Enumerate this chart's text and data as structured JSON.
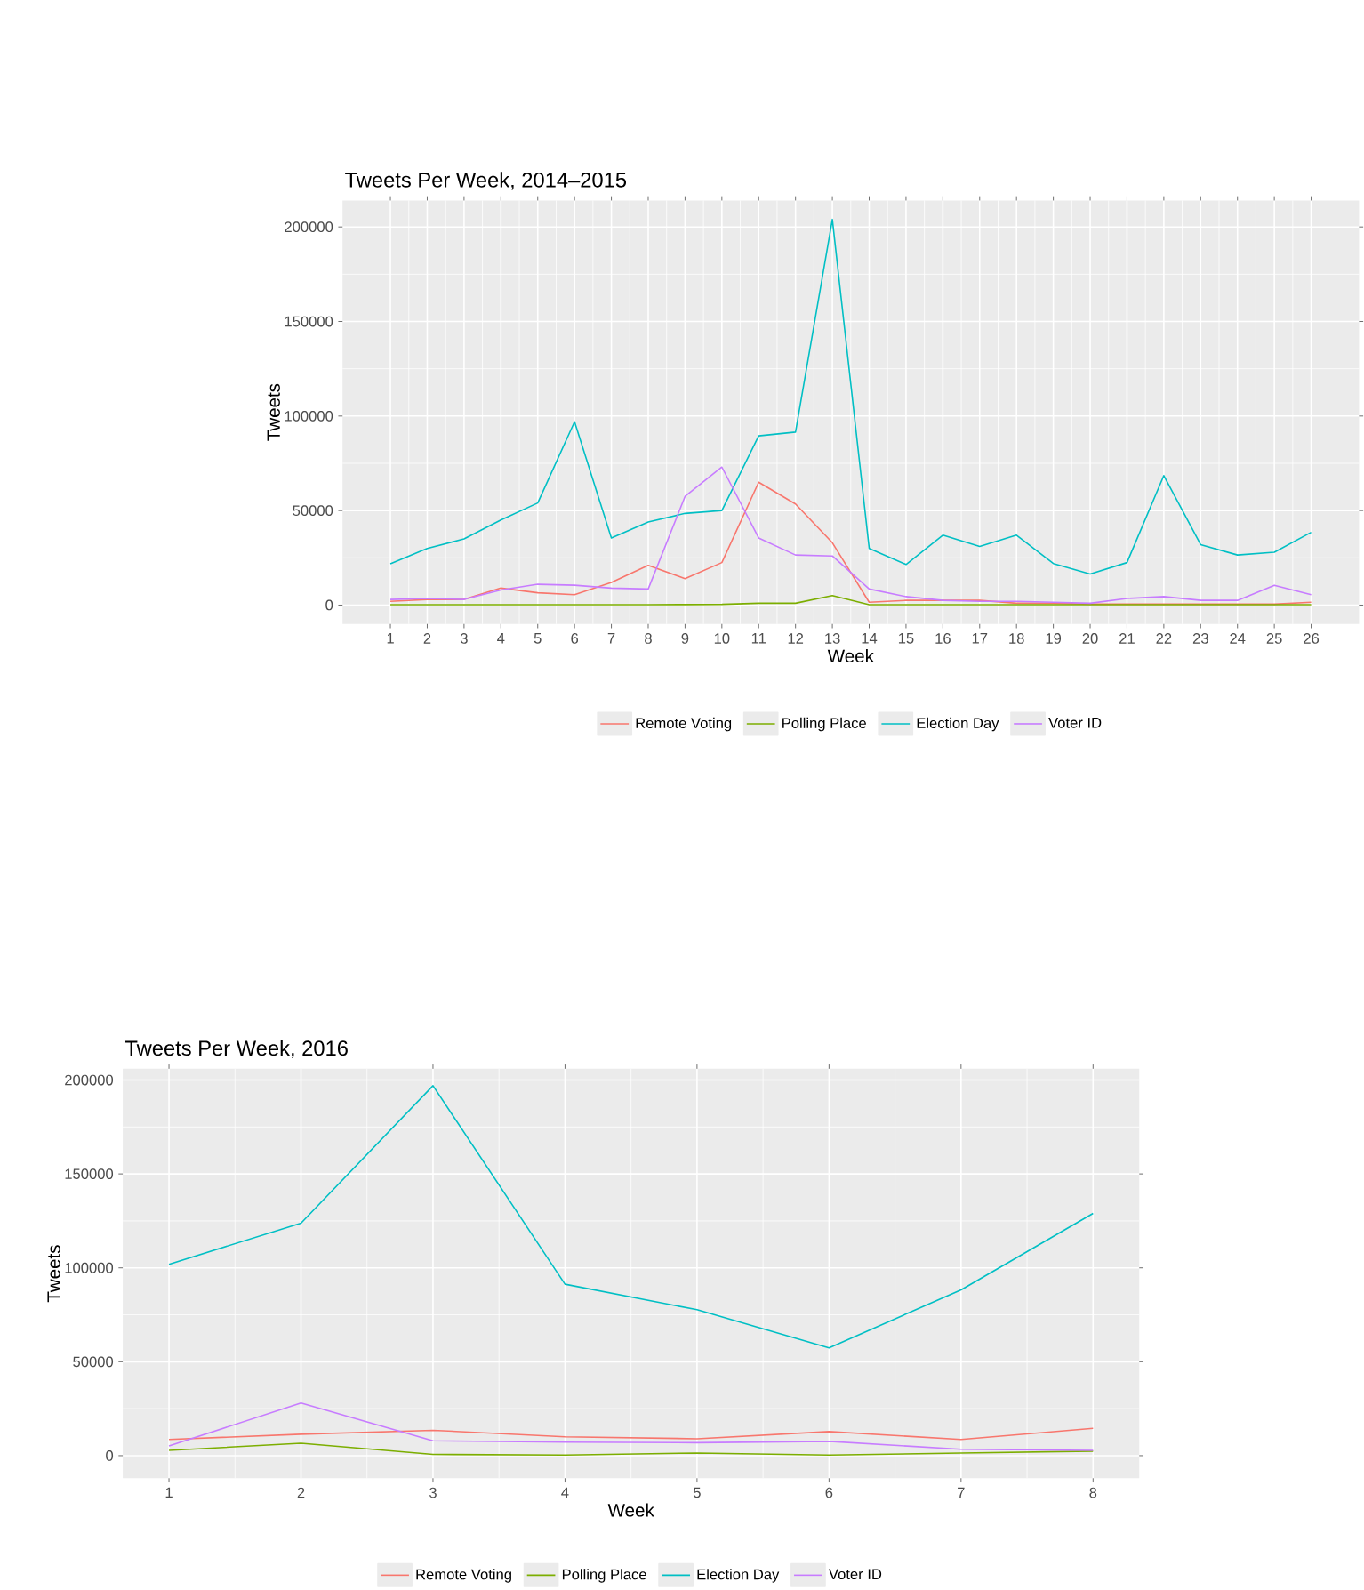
{
  "chart_data": [
    {
      "type": "line",
      "title": "Tweets Per Week, 2014–2015",
      "xlabel": "Week",
      "ylabel": "Tweets",
      "x": [
        1,
        2,
        3,
        4,
        5,
        6,
        7,
        8,
        9,
        10,
        11,
        12,
        13,
        14,
        15,
        16,
        17,
        18,
        19,
        20,
        21,
        22,
        23,
        24,
        25,
        26
      ],
      "series": [
        {
          "name": "Remote Voting",
          "color": "#f8766d",
          "values": [
            2000,
            3000,
            3000,
            9000,
            6500,
            5500,
            12000,
            21000,
            14000,
            22500,
            65000,
            53500,
            33000,
            1500,
            2500,
            2500,
            2500,
            1000,
            1000,
            500,
            500,
            500,
            500,
            500,
            500,
            1500
          ]
        },
        {
          "name": "Polling Place",
          "color": "#7cae00",
          "values": [
            200,
            200,
            200,
            200,
            200,
            200,
            200,
            200,
            300,
            400,
            1000,
            1000,
            5000,
            200,
            200,
            200,
            200,
            200,
            200,
            200,
            200,
            200,
            200,
            200,
            200,
            200
          ]
        },
        {
          "name": "Election Day",
          "color": "#00bfc4",
          "values": [
            21900,
            30000,
            35000,
            45000,
            54000,
            97000,
            35500,
            44000,
            48500,
            50000,
            89500,
            91500,
            204000,
            30000,
            21500,
            37000,
            31000,
            37000,
            22000,
            16500,
            22500,
            68500,
            32000,
            26500,
            28000,
            38500
          ]
        },
        {
          "name": "Voter ID",
          "color": "#c77cff",
          "values": [
            3000,
            3500,
            3000,
            8000,
            11000,
            10500,
            9000,
            8500,
            57500,
            73000,
            35500,
            26500,
            26000,
            8500,
            4500,
            2500,
            2000,
            2000,
            1500,
            1000,
            3500,
            4500,
            2500,
            2500,
            10500,
            5500
          ]
        }
      ],
      "xlim": [
        -0.3,
        27.3
      ],
      "ylim": [
        -10000,
        214000
      ],
      "xticks": [
        1,
        2,
        3,
        4,
        5,
        6,
        7,
        8,
        9,
        10,
        11,
        12,
        13,
        14,
        15,
        16,
        17,
        18,
        19,
        20,
        21,
        22,
        23,
        24,
        25,
        26
      ],
      "yticks": [
        0,
        50000,
        100000,
        150000,
        200000
      ],
      "grid": true,
      "legend": "bottom"
    },
    {
      "type": "line",
      "title": "Tweets Per Week, 2016",
      "xlabel": "Week",
      "ylabel": "Tweets",
      "x": [
        1,
        2,
        3,
        4,
        5,
        6,
        7,
        8
      ],
      "series": [
        {
          "name": "Remote Voting",
          "color": "#f8766d",
          "values": [
            8600,
            11400,
            13500,
            10000,
            9000,
            12800,
            8600,
            14500
          ]
        },
        {
          "name": "Polling Place",
          "color": "#7cae00",
          "values": [
            2800,
            6600,
            700,
            300,
            1400,
            300,
            1400,
            2400
          ]
        },
        {
          "name": "Election Day",
          "color": "#00bfc4",
          "values": [
            101900,
            123800,
            197000,
            91300,
            77700,
            57400,
            88300,
            129000
          ]
        },
        {
          "name": "Voter ID",
          "color": "#c77cff",
          "values": [
            5200,
            28000,
            7900,
            7200,
            6900,
            7600,
            3400,
            2800
          ]
        }
      ],
      "xlim": [
        0.65,
        8.35
      ],
      "ylim": [
        -12000,
        206000
      ],
      "xticks": [
        1,
        2,
        3,
        4,
        5,
        6,
        7,
        8
      ],
      "yticks": [
        0,
        50000,
        100000,
        150000,
        200000
      ],
      "grid": true,
      "legend": "bottom"
    }
  ]
}
